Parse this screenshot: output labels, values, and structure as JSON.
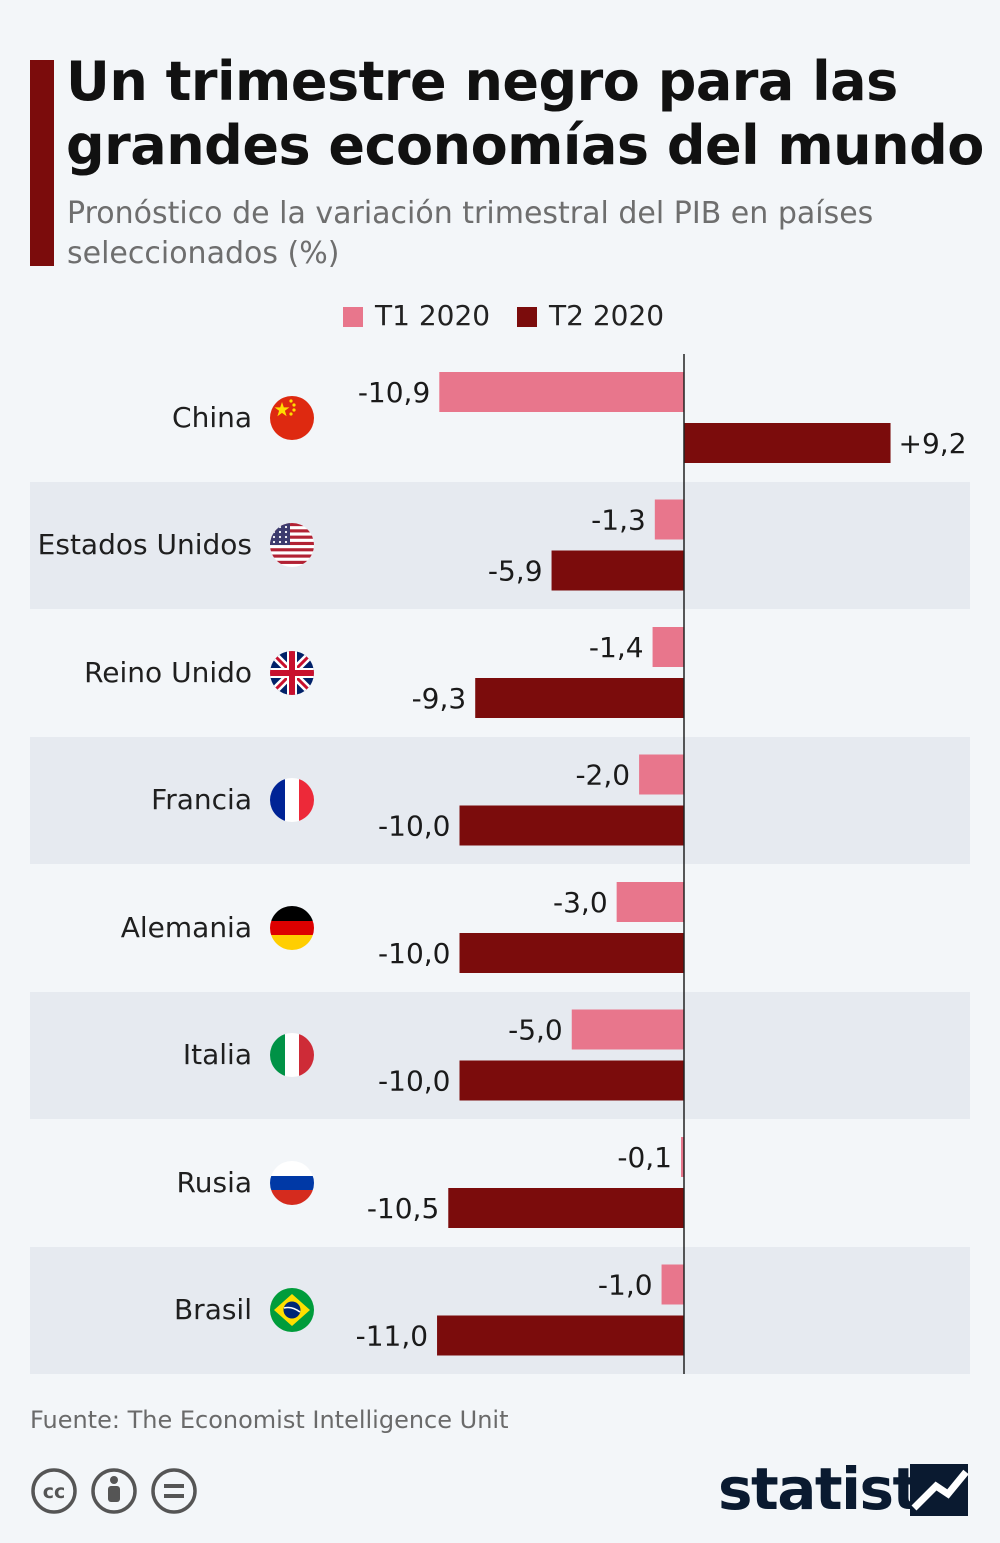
{
  "header": {
    "title": "Un trimestre negro para las grandes economías del mundo",
    "subtitle": "Pronóstico de la variación trimestral del PIB en países seleccionados (%)"
  },
  "legend": {
    "t1_label": "T1 2020",
    "t2_label": "T2 2020"
  },
  "colors": {
    "t1": "#e8768c",
    "t2": "#7b0c0c",
    "accent": "#7b0c0c"
  },
  "chart_data": {
    "type": "bar",
    "orientation": "horizontal",
    "categories": [
      "China",
      "Estados Unidos",
      "Reino Unido",
      "Francia",
      "Alemania",
      "Italia",
      "Rusia",
      "Brasil"
    ],
    "flag_icons": [
      "flag-china-icon",
      "flag-usa-icon",
      "flag-uk-icon",
      "flag-france-icon",
      "flag-germany-icon",
      "flag-italy-icon",
      "flag-russia-icon",
      "flag-brazil-icon"
    ],
    "series": [
      {
        "name": "T1 2020",
        "values": [
          -10.9,
          -1.3,
          -1.4,
          -2.0,
          -3.0,
          -5.0,
          -0.1,
          -1.0
        ],
        "labels": [
          "-10,9",
          "-1,3",
          "-1,4",
          "-2,0",
          "-3,0",
          "-5,0",
          "-0,1",
          "-1,0"
        ]
      },
      {
        "name": "T2 2020",
        "values": [
          9.2,
          -5.9,
          -9.3,
          -10.0,
          -10.0,
          -10.0,
          -10.5,
          -11.0
        ],
        "labels": [
          "+9,2",
          "-5,9",
          "-9,3",
          "-10,0",
          "-10,0",
          "-10,0",
          "-10,5",
          "-11,0"
        ]
      }
    ],
    "legend_position": "top-center",
    "grid": false
  },
  "footer": {
    "source": "Fuente: The Economist Intelligence Unit",
    "logo_text": "statista",
    "license_icons": [
      "cc-icon",
      "attribution-icon",
      "no-derivatives-icon"
    ]
  }
}
